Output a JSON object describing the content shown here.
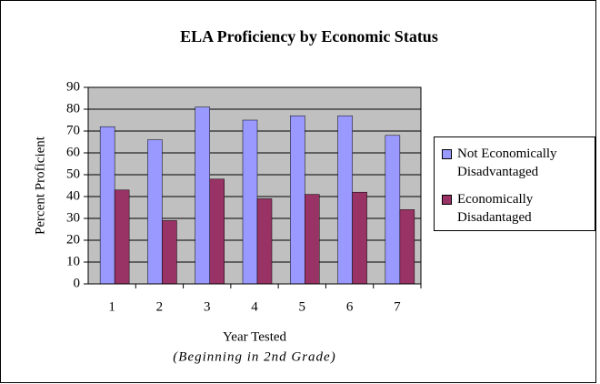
{
  "chart_data": {
    "type": "bar",
    "title": "ELA Proficiency by Economic Status",
    "xlabel": "Year Tested",
    "xlabel_note": "(Beginning in 2nd Grade)",
    "ylabel": "Percent Proficient",
    "categories": [
      "1",
      "2",
      "3",
      "4",
      "5",
      "6",
      "7"
    ],
    "series": [
      {
        "name": "Not Economically Disadvantaged",
        "color": "#9999ff",
        "values": [
          72,
          66,
          81,
          75,
          77,
          77,
          68
        ]
      },
      {
        "name": "Economically Disadantaged",
        "color": "#993366",
        "values": [
          43,
          29,
          48,
          39,
          41,
          42,
          34
        ]
      }
    ],
    "ylim": [
      0,
      90
    ],
    "yticks": [
      0,
      10,
      20,
      30,
      40,
      50,
      60,
      70,
      80,
      90
    ],
    "grid": true,
    "plot_background": "#c0c0c0",
    "legend": "right"
  }
}
